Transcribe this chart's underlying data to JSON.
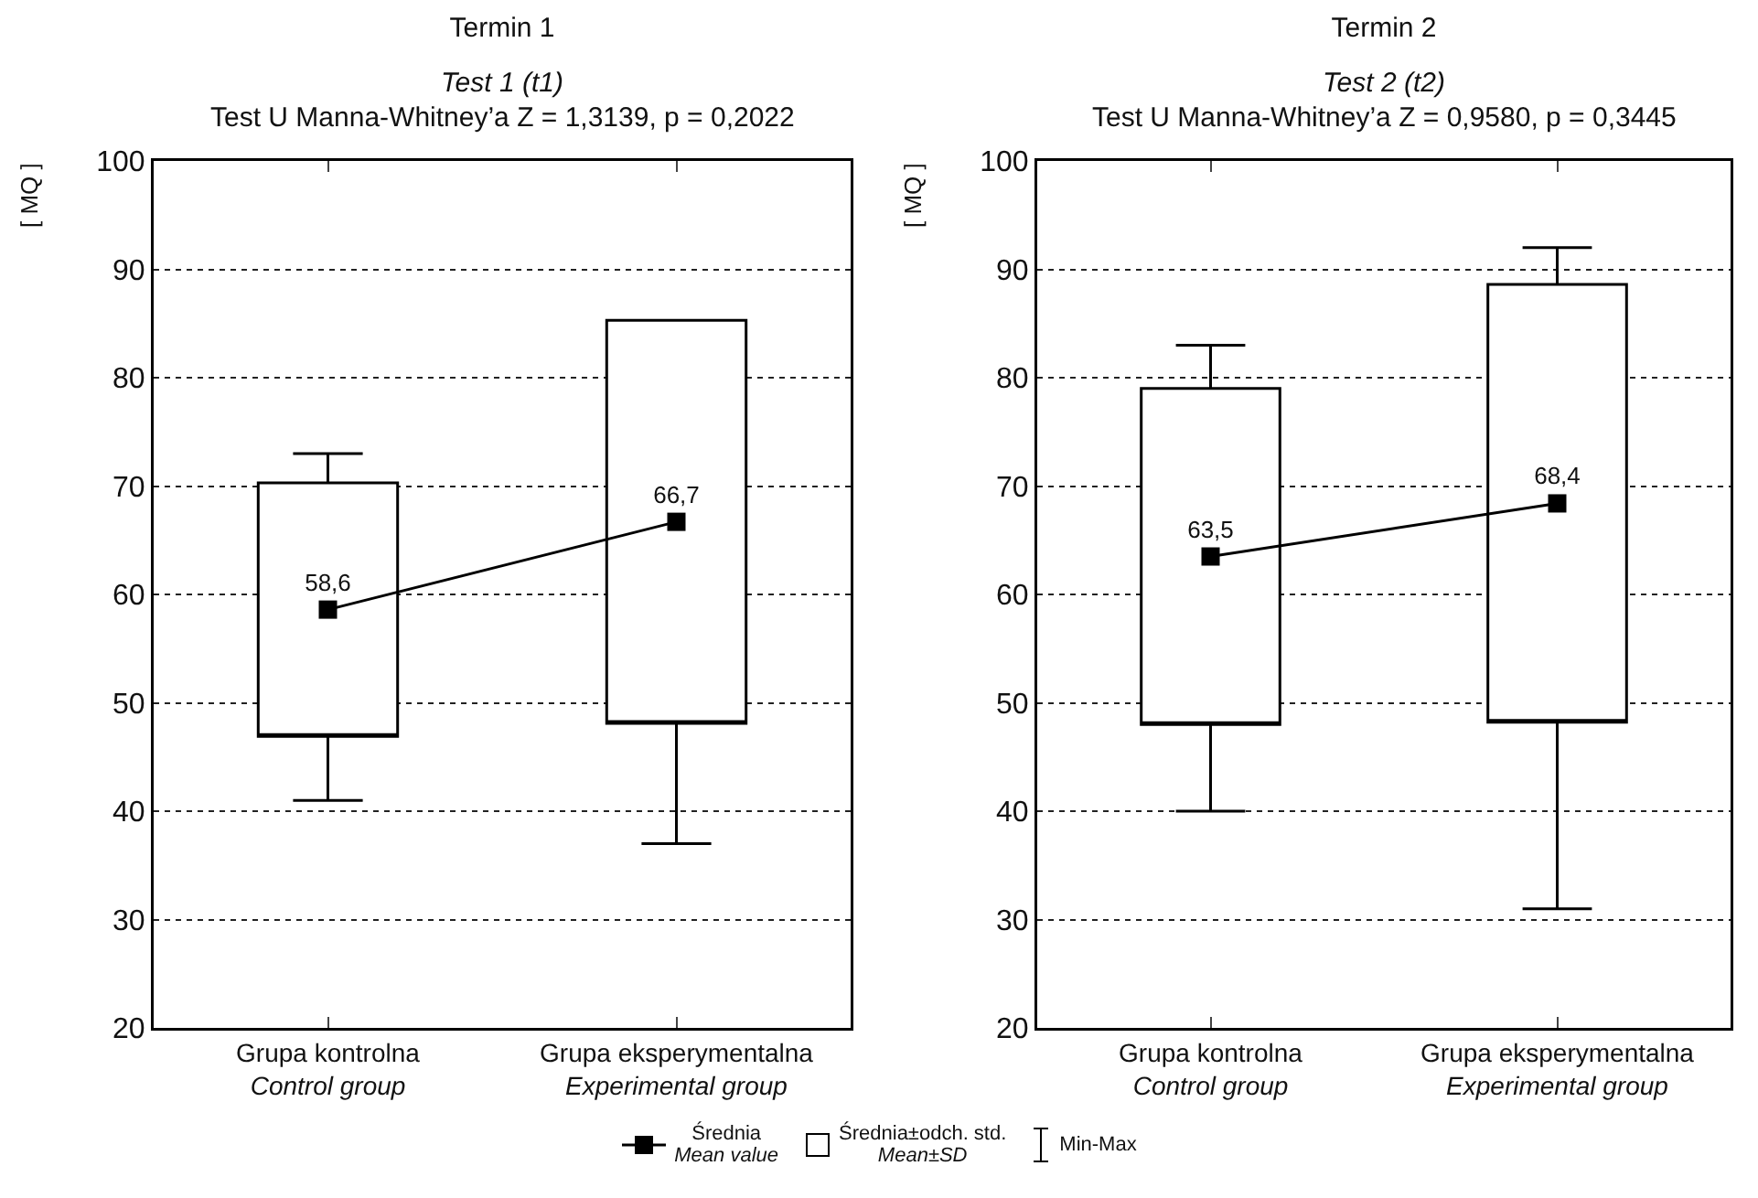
{
  "chart_data": [
    {
      "type": "box",
      "title": "Termin 1",
      "subtitle": "Test 1 (t1)",
      "annotations": [
        "Test U Manna-Whitney’a Z = 1,3139, p = 0,2022",
        "Min-Max"
      ],
      "ylabel": "[ MQ ]",
      "categories": [
        "Grupa kontrolna\nControl group",
        "Grupa eksperymentalna\nExperimental group"
      ],
      "series": [
        {
          "name": "Średnia\nMean value",
          "type": "line",
          "color": "#000000",
          "values": [
            58.6,
            66.7
          ],
          "value_labels": [
            "58,6",
            "66,7"
          ]
        },
        {
          "name": "Średnia±odch. std.\nMean±SD",
          "color": "#000000",
          "boxes": [
            {
              "low": 41,
              "q1": 46.9,
              "q3": 70.3,
              "high": 73
            },
            {
              "low": 37,
              "q1": 48.1,
              "q3": 85.3,
              "high": 85
            }
          ]
        }
      ],
      "ylim": [
        20,
        100
      ],
      "yticks": [
        20,
        30,
        40,
        50,
        60,
        70,
        80,
        90,
        100
      ],
      "grid": "y",
      "marker": "square",
      "legend": "bottom"
    },
    {
      "type": "box",
      "title": "Termin 2",
      "subtitle": "Test 2 (t2)",
      "annotations": [
        "Test U Manna-Whitney’a Z = 0,9580, p = 0,3445"
      ],
      "ylabel": "[ MQ ]",
      "categories": [
        "Grupa kontrolna\nControl group",
        "Grupa eksperymentalna\nExperimental group"
      ],
      "series": [
        {
          "type": "line",
          "color": "#000000",
          "values": [
            63.5,
            68.4
          ],
          "value_labels": [
            "63,5",
            "68,4"
          ]
        },
        {
          "color": "#000000",
          "boxes": [
            {
              "low": 40,
              "q1": 48,
              "q3": 79,
              "high": 83
            },
            {
              "low": 31,
              "q1": 48.2,
              "q3": 88.6,
              "high": 92
            }
          ]
        }
      ],
      "ylim": [
        20,
        100
      ],
      "yticks": [
        20,
        30,
        40,
        50,
        60,
        70,
        80,
        90,
        100
      ],
      "grid": "y",
      "marker": "square"
    }
  ]
}
